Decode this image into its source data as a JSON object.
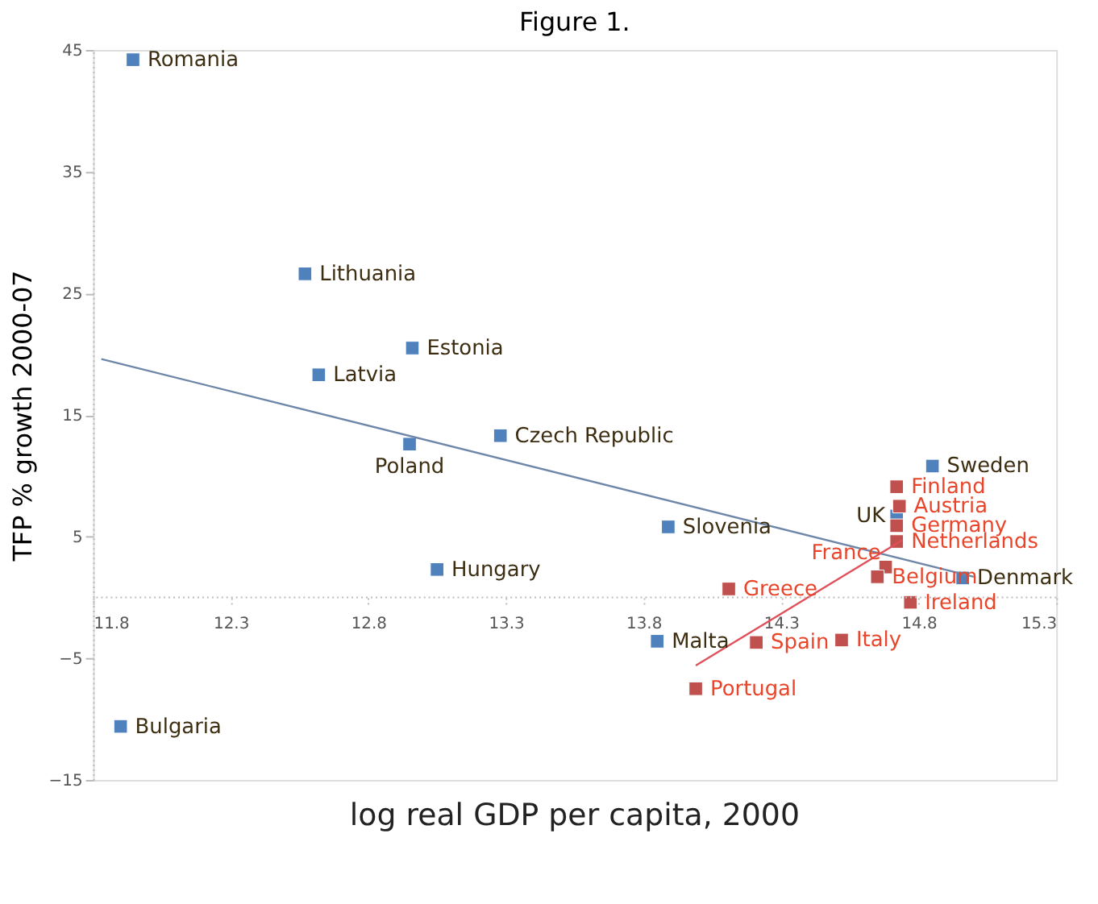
{
  "chart_data": {
    "type": "scatter",
    "title": "Figure 1.",
    "xlabel": "log real GDP per capita, 2000",
    "ylabel": "TFP % growth 2000-07",
    "xlim": [
      11.8,
      15.3
    ],
    "xticks": [
      11.8,
      12.3,
      12.8,
      13.3,
      13.8,
      14.3,
      14.8,
      15.3
    ],
    "ylim": [
      -15,
      45
    ],
    "yticks": [
      -15,
      -5,
      5,
      15,
      25,
      35,
      45
    ],
    "grid": false,
    "marker": "square",
    "ref_lines": [
      {
        "axis": "y",
        "value": 0,
        "color": "#bbbbbb",
        "line_style": "dotted"
      }
    ],
    "series": [
      {
        "color": "#4f81bd",
        "x": [
          11.945,
          12.57,
          12.96,
          12.62,
          12.95,
          13.28,
          13.05,
          11.9,
          13.89,
          13.85,
          14.85,
          14.72,
          14.96
        ],
        "values": [
          44.2,
          26.6,
          20.5,
          18.3,
          12.6,
          13.3,
          2.3,
          -10.6,
          5.8,
          -3.6,
          10.8,
          6.7,
          1.6
        ]
      },
      {
        "color": "#c0504d",
        "x": [
          14.72,
          14.73,
          14.72,
          14.72,
          14.68,
          14.65,
          14.11,
          14.21,
          14.52,
          13.99,
          14.77
        ],
        "values": [
          9.1,
          7.5,
          5.9,
          4.6,
          2.5,
          1.7,
          0.7,
          -3.7,
          -3.5,
          -7.5,
          -0.4
        ]
      },
      {
        "type": "line",
        "marker": "none",
        "color": "#6d86a8",
        "x": [
          11.83,
          15.0
        ],
        "values": [
          19.6,
          1.7
        ]
      },
      {
        "type": "line",
        "marker": "none",
        "color": "#e0505a",
        "x": [
          13.99,
          14.74
        ],
        "values": [
          -5.6,
          4.7
        ]
      }
    ],
    "annotations": [
      {
        "text": "Romania",
        "x": 11.945,
        "y": 44.2
      },
      {
        "text": "Lithuania",
        "x": 12.57,
        "y": 26.6
      },
      {
        "text": "Estonia",
        "x": 12.96,
        "y": 20.5
      },
      {
        "text": "Latvia",
        "x": 12.62,
        "y": 18.3
      },
      {
        "text": "Poland",
        "x": 12.95,
        "y": 12.6
      },
      {
        "text": "Czech Republic",
        "x": 13.28,
        "y": 13.3
      },
      {
        "text": "Hungary",
        "x": 13.05,
        "y": 2.3
      },
      {
        "text": "Bulgaria",
        "x": 11.9,
        "y": -10.6
      },
      {
        "text": "Slovenia",
        "x": 13.89,
        "y": 5.8
      },
      {
        "text": "Malta",
        "x": 13.85,
        "y": -3.6
      },
      {
        "text": "Sweden",
        "x": 14.85,
        "y": 10.8
      },
      {
        "text": "UK",
        "x": 14.72,
        "y": 6.7
      },
      {
        "text": "Denmark",
        "x": 14.96,
        "y": 1.6
      },
      {
        "text": "Finland",
        "x": 14.72,
        "y": 9.1
      },
      {
        "text": "Austria",
        "x": 14.73,
        "y": 7.5
      },
      {
        "text": "Germany",
        "x": 14.72,
        "y": 5.9
      },
      {
        "text": "Netherlands",
        "x": 14.72,
        "y": 4.6
      },
      {
        "text": "France",
        "x": 14.68,
        "y": 2.5
      },
      {
        "text": "Belgium",
        "x": 14.65,
        "y": 1.7
      },
      {
        "text": "Greece",
        "x": 14.11,
        "y": 0.7
      },
      {
        "text": "Spain",
        "x": 14.21,
        "y": -3.7
      },
      {
        "text": "Italy",
        "x": 14.52,
        "y": -3.5
      },
      {
        "text": "Portugal",
        "x": 13.99,
        "y": -7.5
      },
      {
        "text": "Ireland",
        "x": 14.77,
        "y": -0.4
      }
    ]
  }
}
